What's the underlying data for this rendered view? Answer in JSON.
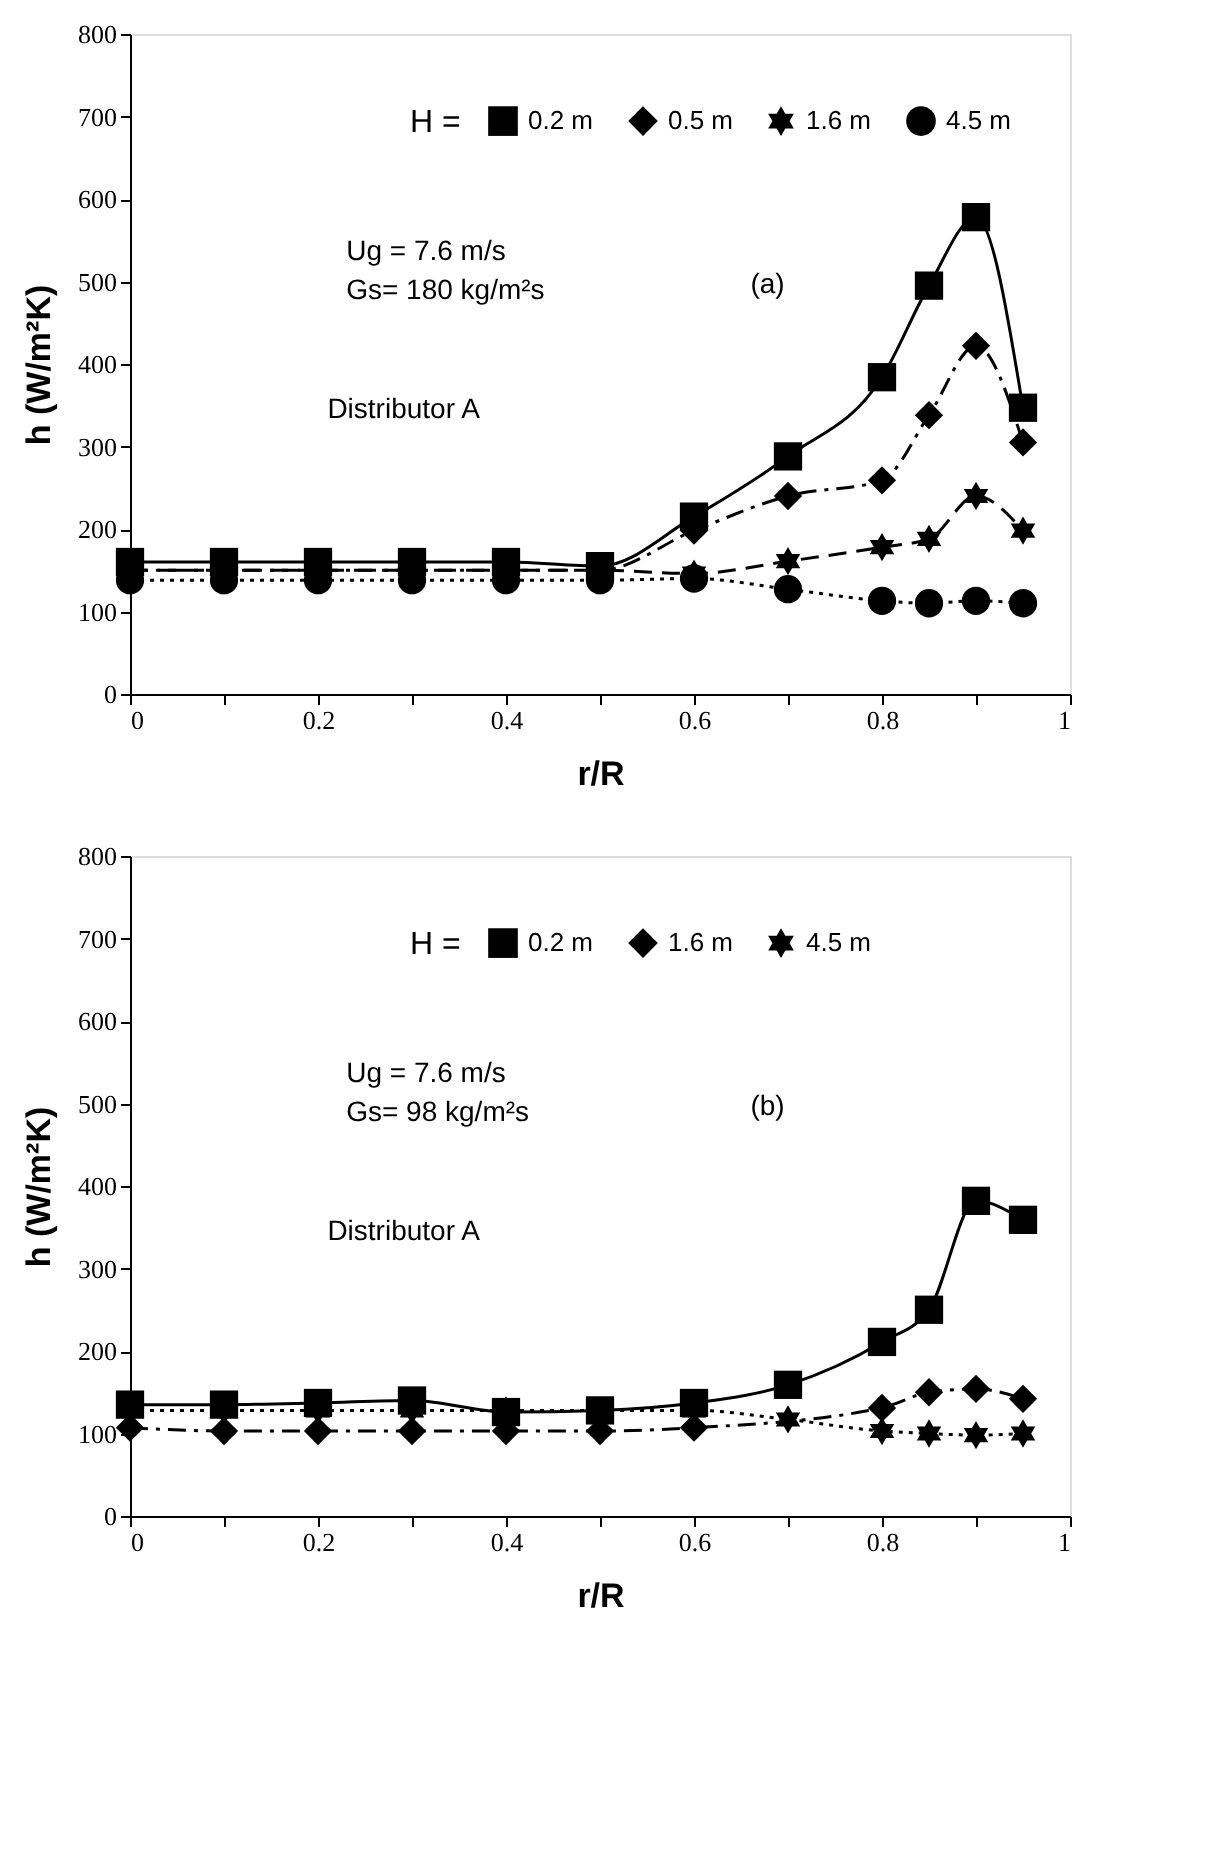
{
  "chart_data": [
    {
      "type": "line",
      "xlabel": "r/R",
      "ylabel": "h (W/m²K)",
      "legend_title": "H =",
      "legend": "top",
      "grid": false,
      "x": [
        0,
        0.1,
        0.2,
        0.3,
        0.4,
        0.5,
        0.6,
        0.7,
        0.8,
        0.85,
        0.9,
        0.95
      ],
      "xlim": [
        0,
        1
      ],
      "xticks": [
        0,
        {
          "value": 0.1,
          "label": null
        },
        0.2,
        {
          "value": 0.3,
          "label": null
        },
        0.4,
        {
          "value": 0.5,
          "label": null
        },
        0.6,
        {
          "value": 0.7,
          "label": null
        },
        0.8,
        {
          "value": 0.9,
          "label": null
        },
        1
      ],
      "ylim": [
        0,
        800
      ],
      "yticks": [
        0,
        100,
        200,
        300,
        400,
        500,
        600,
        700,
        800
      ],
      "annotations": [
        "Ug = 7.6 m/s",
        "Gs= 180 kg/m²s",
        "(a)",
        "Distributor A"
      ],
      "series": [
        {
          "name": "0.2 m",
          "color": "#000000",
          "marker": "square",
          "line_style": "solid",
          "values": [
            160,
            160,
            160,
            160,
            160,
            155,
            215,
            288,
            384,
            495,
            578,
            347
          ]
        },
        {
          "name": "0.5 m",
          "color": "#000000",
          "marker": "diamond",
          "line_style": "dashdot",
          "values": [
            150,
            150,
            150,
            150,
            150,
            150,
            198,
            240,
            259,
            338,
            422,
            305
          ]
        },
        {
          "name": "1.6 m",
          "color": "#000000",
          "marker": "star",
          "line_style": "dashed",
          "values": [
            150,
            150,
            150,
            150,
            150,
            150,
            146,
            161,
            178,
            188,
            240,
            198
          ]
        },
        {
          "name": "4.5 m",
          "color": "#000000",
          "marker": "circle",
          "line_style": "dotted",
          "values": [
            138,
            138,
            138,
            138,
            138,
            138,
            140,
            127,
            113,
            110,
            113,
            110
          ]
        }
      ]
    },
    {
      "type": "line",
      "xlabel": "r/R",
      "ylabel": "h (W/m²K)",
      "legend_title": "H =",
      "legend": "top",
      "grid": false,
      "x": [
        0,
        0.1,
        0.2,
        0.3,
        0.4,
        0.5,
        0.6,
        0.7,
        0.8,
        0.85,
        0.9,
        0.95
      ],
      "xlim": [
        0,
        1
      ],
      "xticks": [
        0,
        {
          "value": 0.1,
          "label": null
        },
        0.2,
        {
          "value": 0.3,
          "label": null
        },
        0.4,
        {
          "value": 0.5,
          "label": null
        },
        0.6,
        {
          "value": 0.7,
          "label": null
        },
        0.8,
        {
          "value": 0.9,
          "label": null
        },
        1
      ],
      "ylim": [
        0,
        800
      ],
      "yticks": [
        0,
        100,
        200,
        300,
        400,
        500,
        600,
        700,
        800
      ],
      "annotations": [
        "Ug = 7.6 m/s",
        "Gs= 98 kg/m²s",
        "(b)",
        "Distributor A"
      ],
      "series": [
        {
          "name": "0.2 m",
          "color": "#000000",
          "marker": "square",
          "line_style": "solid",
          "values": [
            135,
            135,
            137,
            140,
            126,
            128,
            137,
            159,
            211,
            250,
            382,
            359
          ]
        },
        {
          "name": "1.6 m",
          "color": "#000000",
          "marker": "diamond",
          "line_style": "dashdot",
          "values": [
            107,
            103,
            103,
            103,
            103,
            103,
            107,
            null,
            131,
            150,
            154,
            142
          ]
        },
        {
          "name": "4.5 m",
          "color": "#000000",
          "marker": "star",
          "line_style": "dotted",
          "values": [
            128,
            128,
            128,
            128,
            128,
            128,
            128,
            117,
            103,
            100,
            98,
            100
          ]
        }
      ]
    }
  ]
}
